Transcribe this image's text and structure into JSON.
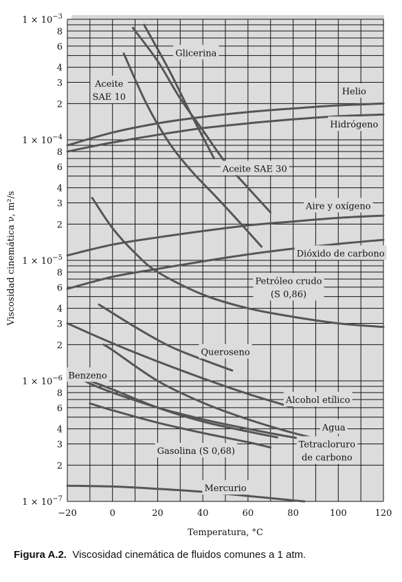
{
  "caption": {
    "label": "Figura A.2.",
    "text": "Viscosidad cinemática de fluidos comunes a 1 atm."
  },
  "chart_data": {
    "type": "line",
    "xlabel": "Temperatura, °C",
    "ylabel": "Viscosidad cinemática ν, m²/s",
    "xlim": [
      -20,
      120
    ],
    "ylim": [
      1e-07,
      0.001
    ],
    "y_scale": "log",
    "grid": true,
    "colors": {
      "background": "#dcdcdc",
      "curve": "#555555",
      "grid": "#111111"
    },
    "x_ticks": [
      -20,
      0,
      20,
      40,
      60,
      80,
      100,
      120
    ],
    "x_tick_labels": [
      "−20",
      "0",
      "20",
      "40",
      "60",
      "80",
      "100",
      "120"
    ],
    "y_ticks": [
      {
        "value": 0.001,
        "base": "1 × 10",
        "exp": "−3"
      },
      {
        "value": 0.0008,
        "base": "8"
      },
      {
        "value": 0.0006,
        "base": "6"
      },
      {
        "value": 0.0004,
        "base": "4"
      },
      {
        "value": 0.0003,
        "base": "3"
      },
      {
        "value": 0.0002,
        "base": "2"
      },
      {
        "value": 0.0001,
        "base": "1 × 10",
        "exp": "−4"
      },
      {
        "value": 8e-05,
        "base": "8"
      },
      {
        "value": 6e-05,
        "base": "6"
      },
      {
        "value": 4e-05,
        "base": "4"
      },
      {
        "value": 3e-05,
        "base": "3"
      },
      {
        "value": 2e-05,
        "base": "2"
      },
      {
        "value": 1e-05,
        "base": "1 × 10",
        "exp": "−5"
      },
      {
        "value": 8e-06,
        "base": "8"
      },
      {
        "value": 6e-06,
        "base": "6"
      },
      {
        "value": 4e-06,
        "base": "4"
      },
      {
        "value": 3e-06,
        "base": "3"
      },
      {
        "value": 2e-06,
        "base": "2"
      },
      {
        "value": 1e-06,
        "base": "1 × 10",
        "exp": "−6"
      },
      {
        "value": 8e-07,
        "base": "8"
      },
      {
        "value": 6e-07,
        "base": "6"
      },
      {
        "value": 4e-07,
        "base": "4"
      },
      {
        "value": 3e-07,
        "base": "3"
      },
      {
        "value": 2e-07,
        "base": "2"
      },
      {
        "value": 1e-07,
        "base": "1 × 10",
        "exp": "−7"
      }
    ],
    "series": [
      {
        "name": "Glicerina",
        "x": [
          14,
          25,
          35,
          45
        ],
        "y": [
          0.0009,
          0.00038,
          0.00016,
          7e-05
        ]
      },
      {
        "name": "Aceite SAE 10",
        "x": [
          5,
          15,
          25,
          35,
          45,
          55,
          66
        ],
        "y": [
          0.00052,
          0.0002,
          9.5e-05,
          5.5e-05,
          3.5e-05,
          2.2e-05,
          1.3e-05
        ]
      },
      {
        "name": "Aceite SAE 30",
        "x": [
          9,
          20,
          30,
          40,
          50,
          60,
          70
        ],
        "y": [
          0.00085,
          0.00045,
          0.00022,
          0.00012,
          6.5e-05,
          4e-05,
          2.5e-05
        ]
      },
      {
        "name": "Helio",
        "x": [
          -20,
          0,
          20,
          40,
          60,
          80,
          100,
          120
        ],
        "y": [
          9e-05,
          0.000115,
          0.000137,
          0.000155,
          0.00017,
          0.000182,
          0.000193,
          0.0002
        ]
      },
      {
        "name": "Hidrógeno",
        "x": [
          -20,
          0,
          20,
          40,
          60,
          80,
          100,
          120
        ],
        "y": [
          8e-05,
          9.5e-05,
          0.00011,
          0.000125,
          0.000137,
          0.000148,
          0.000157,
          0.000162
        ]
      },
      {
        "name": "Aire y oxígeno",
        "x": [
          -20,
          0,
          20,
          40,
          60,
          80,
          100,
          120
        ],
        "y": [
          1.1e-05,
          1.35e-05,
          1.55e-05,
          1.75e-05,
          1.95e-05,
          2.1e-05,
          2.25e-05,
          2.35e-05
        ]
      },
      {
        "name": "Dióxido de carbono",
        "x": [
          -20,
          0,
          20,
          40,
          60,
          80,
          100,
          120
        ],
        "y": [
          5.8e-06,
          7.3e-06,
          8.5e-06,
          9.8e-06,
          1.12e-05,
          1.25e-05,
          1.37e-05,
          1.48e-05
        ]
      },
      {
        "name": "Petróleo crudo (S 0,86)",
        "x": [
          -9,
          0,
          10,
          20,
          40,
          60,
          80,
          100,
          120
        ],
        "y": [
          3.3e-05,
          1.85e-05,
          1.15e-05,
          8e-06,
          5.2e-06,
          4e-06,
          3.4e-06,
          3e-06,
          2.8e-06
        ]
      },
      {
        "name": "Queroseno",
        "x": [
          -6,
          10,
          25,
          40,
          53
        ],
        "y": [
          4.3e-06,
          2.8e-06,
          1.95e-06,
          1.5e-06,
          1.22e-06
        ]
      },
      {
        "name": "Alcohol etílico",
        "x": [
          -20,
          0,
          20,
          40,
          60,
          80
        ],
        "y": [
          3e-06,
          2.05e-06,
          1.45e-06,
          1.05e-06,
          7.8e-07,
          6e-07
        ]
      },
      {
        "name": "Benzeno",
        "x": [
          -20,
          -10,
          0,
          20,
          40,
          60,
          80,
          100
        ],
        "y": [
          1.2e-06,
          9.5e-07,
          8e-07,
          6e-07,
          4.8e-07,
          4e-07,
          3.4e-07,
          3e-07
        ]
      },
      {
        "name": "Agua",
        "x": [
          -4,
          0,
          20,
          40,
          60,
          80,
          100
        ],
        "y": [
          2e-06,
          1.8e-06,
          1e-06,
          6.6e-07,
          4.8e-07,
          3.7e-07,
          3e-07
        ]
      },
      {
        "name": "Tetracloruro de carbono",
        "x": [
          -10,
          0,
          20,
          40,
          60,
          73
        ],
        "y": [
          1e-06,
          8.5e-07,
          6e-07,
          4.6e-07,
          3.8e-07,
          3.4e-07
        ]
      },
      {
        "name": "Gasolina (S 0,68)",
        "x": [
          -10,
          0,
          20,
          40,
          60,
          70
        ],
        "y": [
          6.5e-07,
          5.7e-07,
          4.5e-07,
          3.7e-07,
          3.1e-07,
          2.8e-07
        ]
      },
      {
        "name": "Mercurio",
        "x": [
          -20,
          0,
          20,
          40,
          60,
          80,
          85
        ],
        "y": [
          1.35e-07,
          1.33e-07,
          1.27e-07,
          1.2e-07,
          1.11e-07,
          1.02e-07,
          1e-07
        ]
      }
    ],
    "annotations": [
      {
        "lines": [
          "Glicerina"
        ],
        "x": 37,
        "y": 0.00053
      },
      {
        "lines": [
          "Aceite",
          "SAE 10"
        ],
        "x": -1.5,
        "y": 0.00026
      },
      {
        "lines": [
          "Helio"
        ],
        "x": 107,
        "y": 0.000255
      },
      {
        "lines": [
          "Hidrógeno"
        ],
        "x": 107,
        "y": 0.000135
      },
      {
        "lines": [
          "Aceite SAE 30"
        ],
        "x": 63,
        "y": 5.8e-05
      },
      {
        "lines": [
          "Aire y oxígeno"
        ],
        "x": 100,
        "y": 2.85e-05
      },
      {
        "lines": [
          "Dióxido de carbono"
        ],
        "x": 101,
        "y": 1.15e-05
      },
      {
        "lines": [
          "Petróleo crudo",
          "(S 0,86)"
        ],
        "x": 78,
        "y": 6e-06
      },
      {
        "lines": [
          "Queroseno"
        ],
        "x": 50,
        "y": 1.75e-06
      },
      {
        "lines": [
          "Benzeno"
        ],
        "x": -11,
        "y": 1.12e-06
      },
      {
        "lines": [
          "Alcohol etílico"
        ],
        "x": 91,
        "y": 7e-07
      },
      {
        "lines": [
          "Agua"
        ],
        "x": 98,
        "y": 4.15e-07
      },
      {
        "lines": [
          "Tetracloruro",
          "de carbono"
        ],
        "x": 95,
        "y": 2.65e-07
      },
      {
        "lines": [
          "Gasolina (S 0,68)"
        ],
        "x": 37,
        "y": 2.65e-07
      },
      {
        "lines": [
          "Mercurio"
        ],
        "x": 50,
        "y": 1.3e-07
      }
    ]
  }
}
